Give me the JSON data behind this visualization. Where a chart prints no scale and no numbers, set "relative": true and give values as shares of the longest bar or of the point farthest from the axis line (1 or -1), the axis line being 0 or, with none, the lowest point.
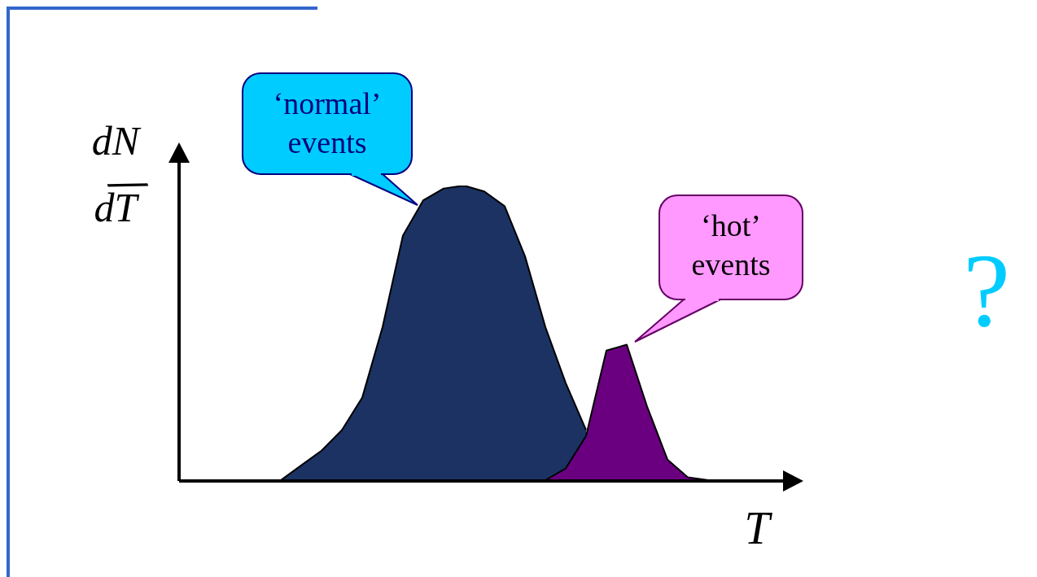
{
  "chart_data": {
    "type": "area",
    "relative": true,
    "xlabel": "T",
    "ylabel": "dN/dT",
    "categories": [
      null,
      null,
      null,
      null,
      null,
      null,
      null,
      null,
      null,
      null,
      null,
      null,
      null,
      null,
      null,
      null,
      null,
      null,
      null,
      null,
      null,
      null,
      null,
      null,
      null,
      null,
      null,
      null,
      null,
      null,
      null
    ],
    "series": [
      {
        "color": "#1b3263",
        "values": [
          null,
          null,
          null,
          null,
          null,
          0,
          0.05,
          0.1,
          0.17,
          0.28,
          0.52,
          0.83,
          0.95,
          0.99,
          1,
          0.98,
          0.93,
          0.76,
          0.52,
          0.33,
          0.17,
          null,
          null,
          null,
          null,
          null,
          null,
          null,
          null,
          null,
          null
        ]
      },
      {
        "color": "#6a0080",
        "values": [
          null,
          null,
          null,
          null,
          null,
          null,
          null,
          null,
          null,
          null,
          null,
          null,
          null,
          null,
          null,
          null,
          null,
          null,
          0,
          0.04,
          0.15,
          0.44,
          0.46,
          0.25,
          0.07,
          0.01,
          0,
          null,
          null,
          null,
          null
        ]
      }
    ],
    "annotations": [
      "‘normal’ events",
      "‘hot’ events",
      "?"
    ]
  }
}
